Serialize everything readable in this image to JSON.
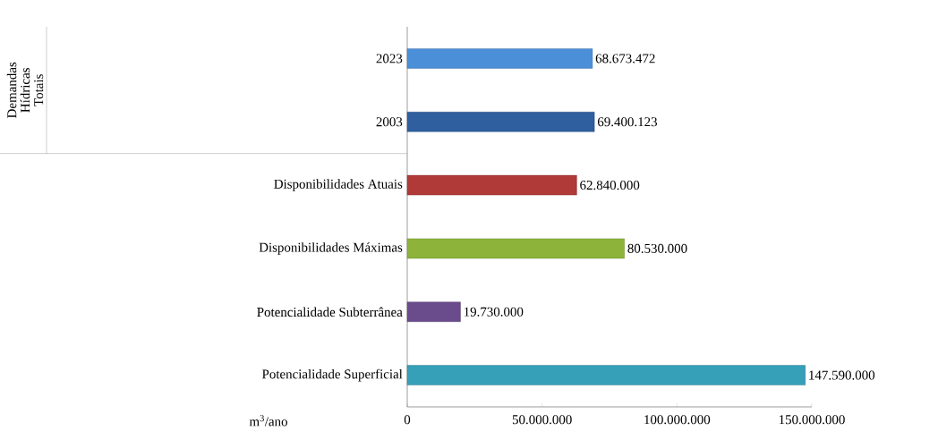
{
  "chart_data": {
    "type": "bar",
    "orientation": "horizontal",
    "categories": [
      "2023",
      "2003",
      "Disponibilidades Atuais",
      "Disponibilidades Máximas",
      "Potencialidade Subterrânea",
      "Potencialidade Superficial"
    ],
    "values": [
      68673472,
      69400123,
      62840000,
      80530000,
      19730000,
      147590000
    ],
    "colors": [
      "#4a8fd8",
      "#2f5f9e",
      "#b03a37",
      "#8db33a",
      "#6a4b8c",
      "#35a0b8"
    ],
    "value_labels": [
      "68.673.472",
      "69.400.123",
      "62.840.000",
      "80.530.000",
      "19.730.000",
      "147.590.000"
    ],
    "xlim": [
      0,
      150000000
    ],
    "xticks": [
      0,
      {
        "value": 50000000,
        "label": "50.000.000"
      },
      {
        "value": 100000000,
        "label": "100.000.000"
      },
      {
        "value": 150000000,
        "label": "150.000.000"
      }
    ],
    "xlabel": "m$^{3}$/ano",
    "annotations": [
      "Demandas Hídricas Totais"
    ],
    "grid": false
  }
}
